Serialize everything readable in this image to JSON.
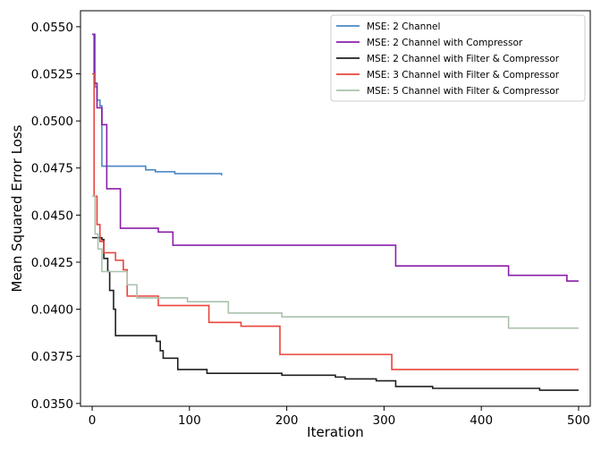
{
  "chart_data": {
    "type": "line",
    "title": "",
    "xlabel": "Iteration",
    "ylabel": "Mean Squared Error Loss",
    "xlim": [
      -12,
      512
    ],
    "ylim": [
      0.03485,
      0.05585
    ],
    "xticks": [
      0,
      100,
      200,
      300,
      400,
      500
    ],
    "xtick_labels": [
      "0",
      "100",
      "200",
      "300",
      "400",
      "500"
    ],
    "yticks": [
      0.035,
      0.0375,
      0.04,
      0.0425,
      0.045,
      0.0475,
      0.05,
      0.0525,
      0.055
    ],
    "ytick_labels": [
      "0.0350",
      "0.0375",
      "0.0400",
      "0.0425",
      "0.0450",
      "0.0475",
      "0.0500",
      "0.0525",
      "0.0550"
    ],
    "grid": false,
    "legend_position": "top-right",
    "series": [
      {
        "name": "MSE: 2 Channel",
        "color": "#4a8ac4",
        "points": [
          [
            0,
            0.0546
          ],
          [
            3,
            0.0518
          ],
          [
            5,
            0.0511
          ],
          [
            8,
            0.0508
          ],
          [
            10,
            0.0476
          ],
          [
            55,
            0.0474
          ],
          [
            65,
            0.0473
          ],
          [
            85,
            0.0472
          ],
          [
            133,
            0.0471
          ]
        ]
      },
      {
        "name": "MSE: 2 Channel with Compressor",
        "color": "#8b1fa9",
        "points": [
          [
            0,
            0.0546
          ],
          [
            2,
            0.052
          ],
          [
            5,
            0.0507
          ],
          [
            10,
            0.0498
          ],
          [
            15,
            0.0464
          ],
          [
            29,
            0.0443
          ],
          [
            68,
            0.0441
          ],
          [
            83,
            0.0434
          ],
          [
            250,
            0.0434
          ],
          [
            312,
            0.0423
          ],
          [
            428,
            0.0418
          ],
          [
            488,
            0.0415
          ],
          [
            500,
            0.0415
          ]
        ]
      },
      {
        "name": "MSE: 2 Channel with Filter & Compressor",
        "color": "#1f1f1f",
        "points": [
          [
            0,
            0.0438
          ],
          [
            6,
            0.0438
          ],
          [
            10,
            0.0437
          ],
          [
            12,
            0.0427
          ],
          [
            16,
            0.042
          ],
          [
            18,
            0.041
          ],
          [
            22,
            0.04
          ],
          [
            24,
            0.0386
          ],
          [
            66,
            0.0383
          ],
          [
            70,
            0.0378
          ],
          [
            73,
            0.0374
          ],
          [
            88,
            0.0368
          ],
          [
            118,
            0.0366
          ],
          [
            195,
            0.0365
          ],
          [
            250,
            0.0364
          ],
          [
            260,
            0.0363
          ],
          [
            292,
            0.0362
          ],
          [
            312,
            0.0359
          ],
          [
            350,
            0.0358
          ],
          [
            400,
            0.0358
          ],
          [
            460,
            0.0357
          ],
          [
            470,
            0.0357
          ],
          [
            500,
            0.0357
          ]
        ]
      },
      {
        "name": "MSE: 3 Channel with Filter & Compressor",
        "color": "#e8453c",
        "points": [
          [
            0,
            0.0525
          ],
          [
            2,
            0.046
          ],
          [
            5,
            0.0445
          ],
          [
            8,
            0.0436
          ],
          [
            12,
            0.043
          ],
          [
            24,
            0.0426
          ],
          [
            32,
            0.0421
          ],
          [
            36,
            0.0407
          ],
          [
            68,
            0.0402
          ],
          [
            120,
            0.0393
          ],
          [
            153,
            0.0391
          ],
          [
            193,
            0.0376
          ],
          [
            308,
            0.0368
          ],
          [
            350,
            0.0368
          ],
          [
            500,
            0.0368
          ]
        ]
      },
      {
        "name": "MSE: 5 Channel with Filter & Compressor",
        "color": "#a9c2ac",
        "points": [
          [
            0,
            0.046
          ],
          [
            3,
            0.044
          ],
          [
            6,
            0.0432
          ],
          [
            10,
            0.042
          ],
          [
            36,
            0.0413
          ],
          [
            46,
            0.0406
          ],
          [
            98,
            0.0404
          ],
          [
            140,
            0.0402
          ],
          [
            140,
            0.0398
          ],
          [
            168,
            0.0398
          ],
          [
            195,
            0.0396
          ],
          [
            420,
            0.0396
          ],
          [
            428,
            0.039
          ],
          [
            500,
            0.039
          ]
        ]
      }
    ]
  }
}
